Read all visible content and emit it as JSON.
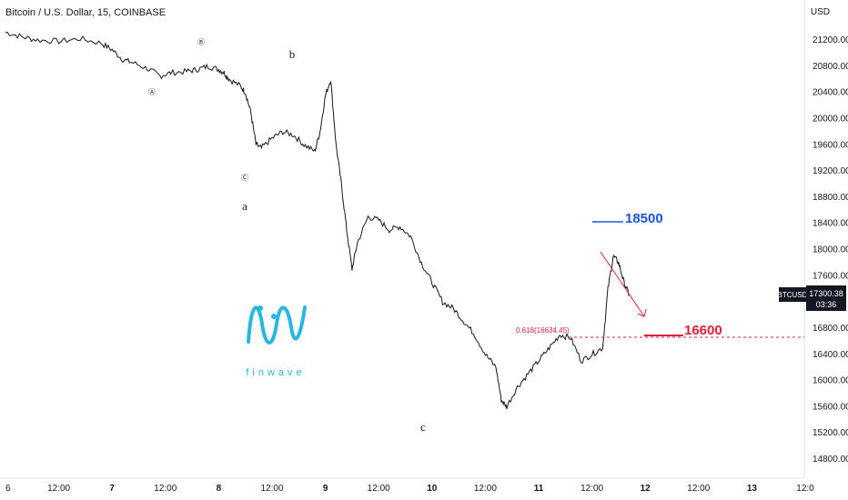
{
  "header": {
    "symbol_title": "Bitcoin / U.S. Dollar, 15, COINBASE",
    "currency": "USD"
  },
  "price_axis": {
    "labels": [
      "21200.00",
      "20800.00",
      "20400.00",
      "20000.00",
      "19600.00",
      "19200.00",
      "18800.00",
      "18400.00",
      "18000.00",
      "17600.00",
      "16800.00",
      "16400.00",
      "16000.00",
      "15600.00",
      "15200.00",
      "14800.00"
    ]
  },
  "time_axis": {
    "labels": [
      "6",
      "12:00",
      "7",
      "12:00",
      "8",
      "12:00",
      "9",
      "12:00",
      "10",
      "12:00",
      "11",
      "12:00",
      "12",
      "12:00",
      "13",
      "12:0"
    ]
  },
  "price_tag": {
    "symbol": "BTCUSD",
    "price": "17300.38",
    "countdown": "03:36"
  },
  "waves": {
    "A": "Ⓐ",
    "B": "Ⓑ",
    "C": "Ⓒ",
    "a": "a",
    "b": "b",
    "c": "c"
  },
  "targets": {
    "upper": {
      "label": "18500",
      "color": "#1e53e5"
    },
    "lower": {
      "label": "16600",
      "color": "#e0203a"
    }
  },
  "fib": {
    "label": "0.618(16634.45)",
    "color": "#e0203a"
  },
  "logo": {
    "text": "finwave",
    "color": "#29b6e0"
  },
  "chart_data": {
    "type": "line",
    "title": "Bitcoin / U.S. Dollar, 15, COINBASE",
    "ylabel": "USD",
    "ylim": [
      14600,
      21600
    ],
    "x": [
      "6",
      "12:00",
      "7",
      "12:00",
      "8",
      "12:00",
      "9",
      "12:00",
      "10",
      "12:00",
      "11",
      "12:00",
      "12",
      "12:00",
      "13"
    ],
    "series": [
      {
        "name": "BTCUSD",
        "points": [
          [
            0.0,
            21320
          ],
          [
            0.15,
            21250
          ],
          [
            0.3,
            21200
          ],
          [
            0.5,
            21180
          ],
          [
            0.7,
            21220
          ],
          [
            0.9,
            21150
          ],
          [
            1.0,
            21050
          ],
          [
            1.1,
            20900
          ],
          [
            1.2,
            20850
          ],
          [
            1.35,
            20750
          ],
          [
            1.45,
            20650
          ],
          [
            1.55,
            20700
          ],
          [
            1.7,
            20720
          ],
          [
            1.8,
            20750
          ],
          [
            1.9,
            20800
          ],
          [
            2.0,
            20750
          ],
          [
            2.05,
            20700
          ],
          [
            2.1,
            20600
          ],
          [
            2.2,
            20500
          ],
          [
            2.25,
            20400
          ],
          [
            2.3,
            20100
          ],
          [
            2.35,
            19600
          ],
          [
            2.4,
            19550
          ],
          [
            2.5,
            19700
          ],
          [
            2.6,
            19800
          ],
          [
            2.7,
            19750
          ],
          [
            2.8,
            19600
          ],
          [
            2.9,
            19500
          ],
          [
            2.95,
            19800
          ],
          [
            3.0,
            20350
          ],
          [
            3.05,
            20600
          ],
          [
            3.1,
            19600
          ],
          [
            3.15,
            19000
          ],
          [
            3.2,
            18300
          ],
          [
            3.25,
            17700
          ],
          [
            3.3,
            18100
          ],
          [
            3.4,
            18500
          ],
          [
            3.5,
            18450
          ],
          [
            3.6,
            18300
          ],
          [
            3.7,
            18350
          ],
          [
            3.8,
            18200
          ],
          [
            3.9,
            17800
          ],
          [
            4.0,
            17500
          ],
          [
            4.1,
            17200
          ],
          [
            4.2,
            17100
          ],
          [
            4.3,
            16900
          ],
          [
            4.4,
            16700
          ],
          [
            4.5,
            16400
          ],
          [
            4.6,
            16200
          ],
          [
            4.65,
            15700
          ],
          [
            4.7,
            15600
          ],
          [
            4.8,
            15900
          ],
          [
            4.9,
            16100
          ],
          [
            5.0,
            16300
          ],
          [
            5.1,
            16500
          ],
          [
            5.2,
            16700
          ],
          [
            5.3,
            16650
          ],
          [
            5.4,
            16300
          ],
          [
            5.5,
            16400
          ],
          [
            5.6,
            16500
          ],
          [
            5.65,
            17400
          ],
          [
            5.7,
            17900
          ],
          [
            5.75,
            17800
          ],
          [
            5.8,
            17500
          ],
          [
            5.85,
            17300
          ]
        ]
      }
    ]
  }
}
